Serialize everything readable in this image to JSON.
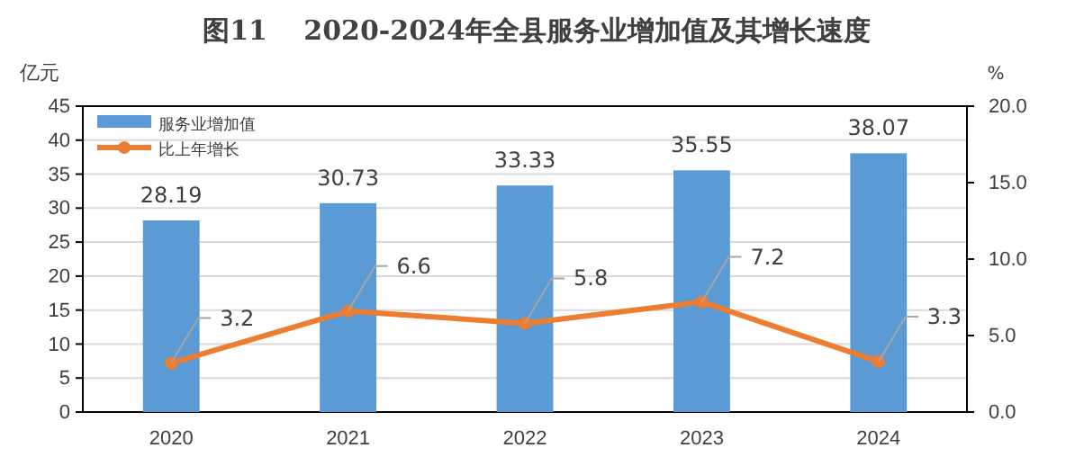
{
  "chart_data": {
    "type": "bar",
    "title": "图11　 2020-2024年全县服务业增加值及其增长速度",
    "ylabel": "亿元",
    "y2label": "%",
    "categories": [
      "2020",
      "2021",
      "2022",
      "2023",
      "2024"
    ],
    "series": [
      {
        "name": "服务业增加值",
        "color": "#5b9bd5",
        "values": [
          28.19,
          30.73,
          33.33,
          35.55,
          38.07
        ]
      },
      {
        "name": "比上年增长",
        "type": "line",
        "axis": "y2",
        "color": "#ed7d31",
        "marker": "circle",
        "values": [
          3.2,
          6.6,
          5.8,
          7.2,
          3.3
        ]
      }
    ],
    "ylim": [
      0,
      45
    ],
    "yticks": [
      0,
      5,
      10,
      15,
      20,
      25,
      30,
      35,
      40,
      45
    ],
    "y2lim": [
      0,
      20
    ],
    "y2ticks": [
      {
        "value": 0,
        "label": "0.0"
      },
      {
        "value": 5,
        "label": "5.0"
      },
      {
        "value": 10,
        "label": "10.0"
      },
      {
        "value": 15,
        "label": "15.0"
      },
      {
        "value": 20,
        "label": "20.0"
      }
    ],
    "grid": "y",
    "legend": "top left",
    "data_labels": true
  }
}
